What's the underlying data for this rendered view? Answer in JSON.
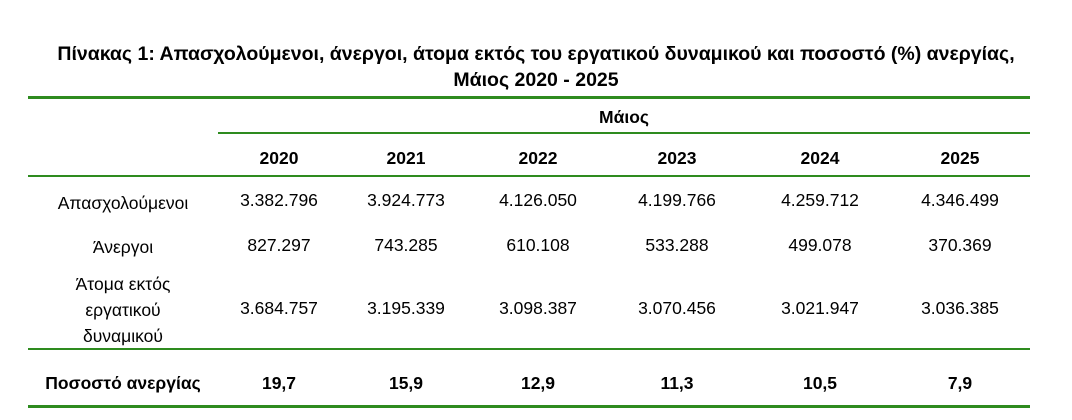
{
  "table": {
    "title_line1": "Πίνακας 1: Απασχολούμενοι, άνεργοι, άτομα εκτός του εργατικού δυναμικού και ποσοστό (%) ανεργίας,",
    "title_line2": "Μάιος 2020 - 2025",
    "group_header": "Μάιος",
    "years": [
      "2020",
      "2021",
      "2022",
      "2023",
      "2024",
      "2025"
    ],
    "rows": [
      {
        "label_lines": [
          "Απασχολούμενοι"
        ],
        "values": [
          "3.382.796",
          "3.924.773",
          "4.126.050",
          "4.199.766",
          "4.259.712",
          "4.346.499"
        ]
      },
      {
        "label_lines": [
          "Άνεργοι"
        ],
        "values": [
          "827.297",
          "743.285",
          "610.108",
          "533.288",
          "499.078",
          "370.369"
        ]
      },
      {
        "label_lines": [
          "Άτομα εκτός",
          "εργατικού",
          "δυναμικού"
        ],
        "values": [
          "3.684.757",
          "3.195.339",
          "3.098.387",
          "3.070.456",
          "3.021.947",
          "3.036.385"
        ]
      }
    ],
    "total_row": {
      "label": "Ποσοστό ανεργίας",
      "values": [
        "19,7",
        "15,9",
        "12,9",
        "11,3",
        "10,5",
        "7,9"
      ]
    },
    "accent_color": "#2e8b1f"
  }
}
